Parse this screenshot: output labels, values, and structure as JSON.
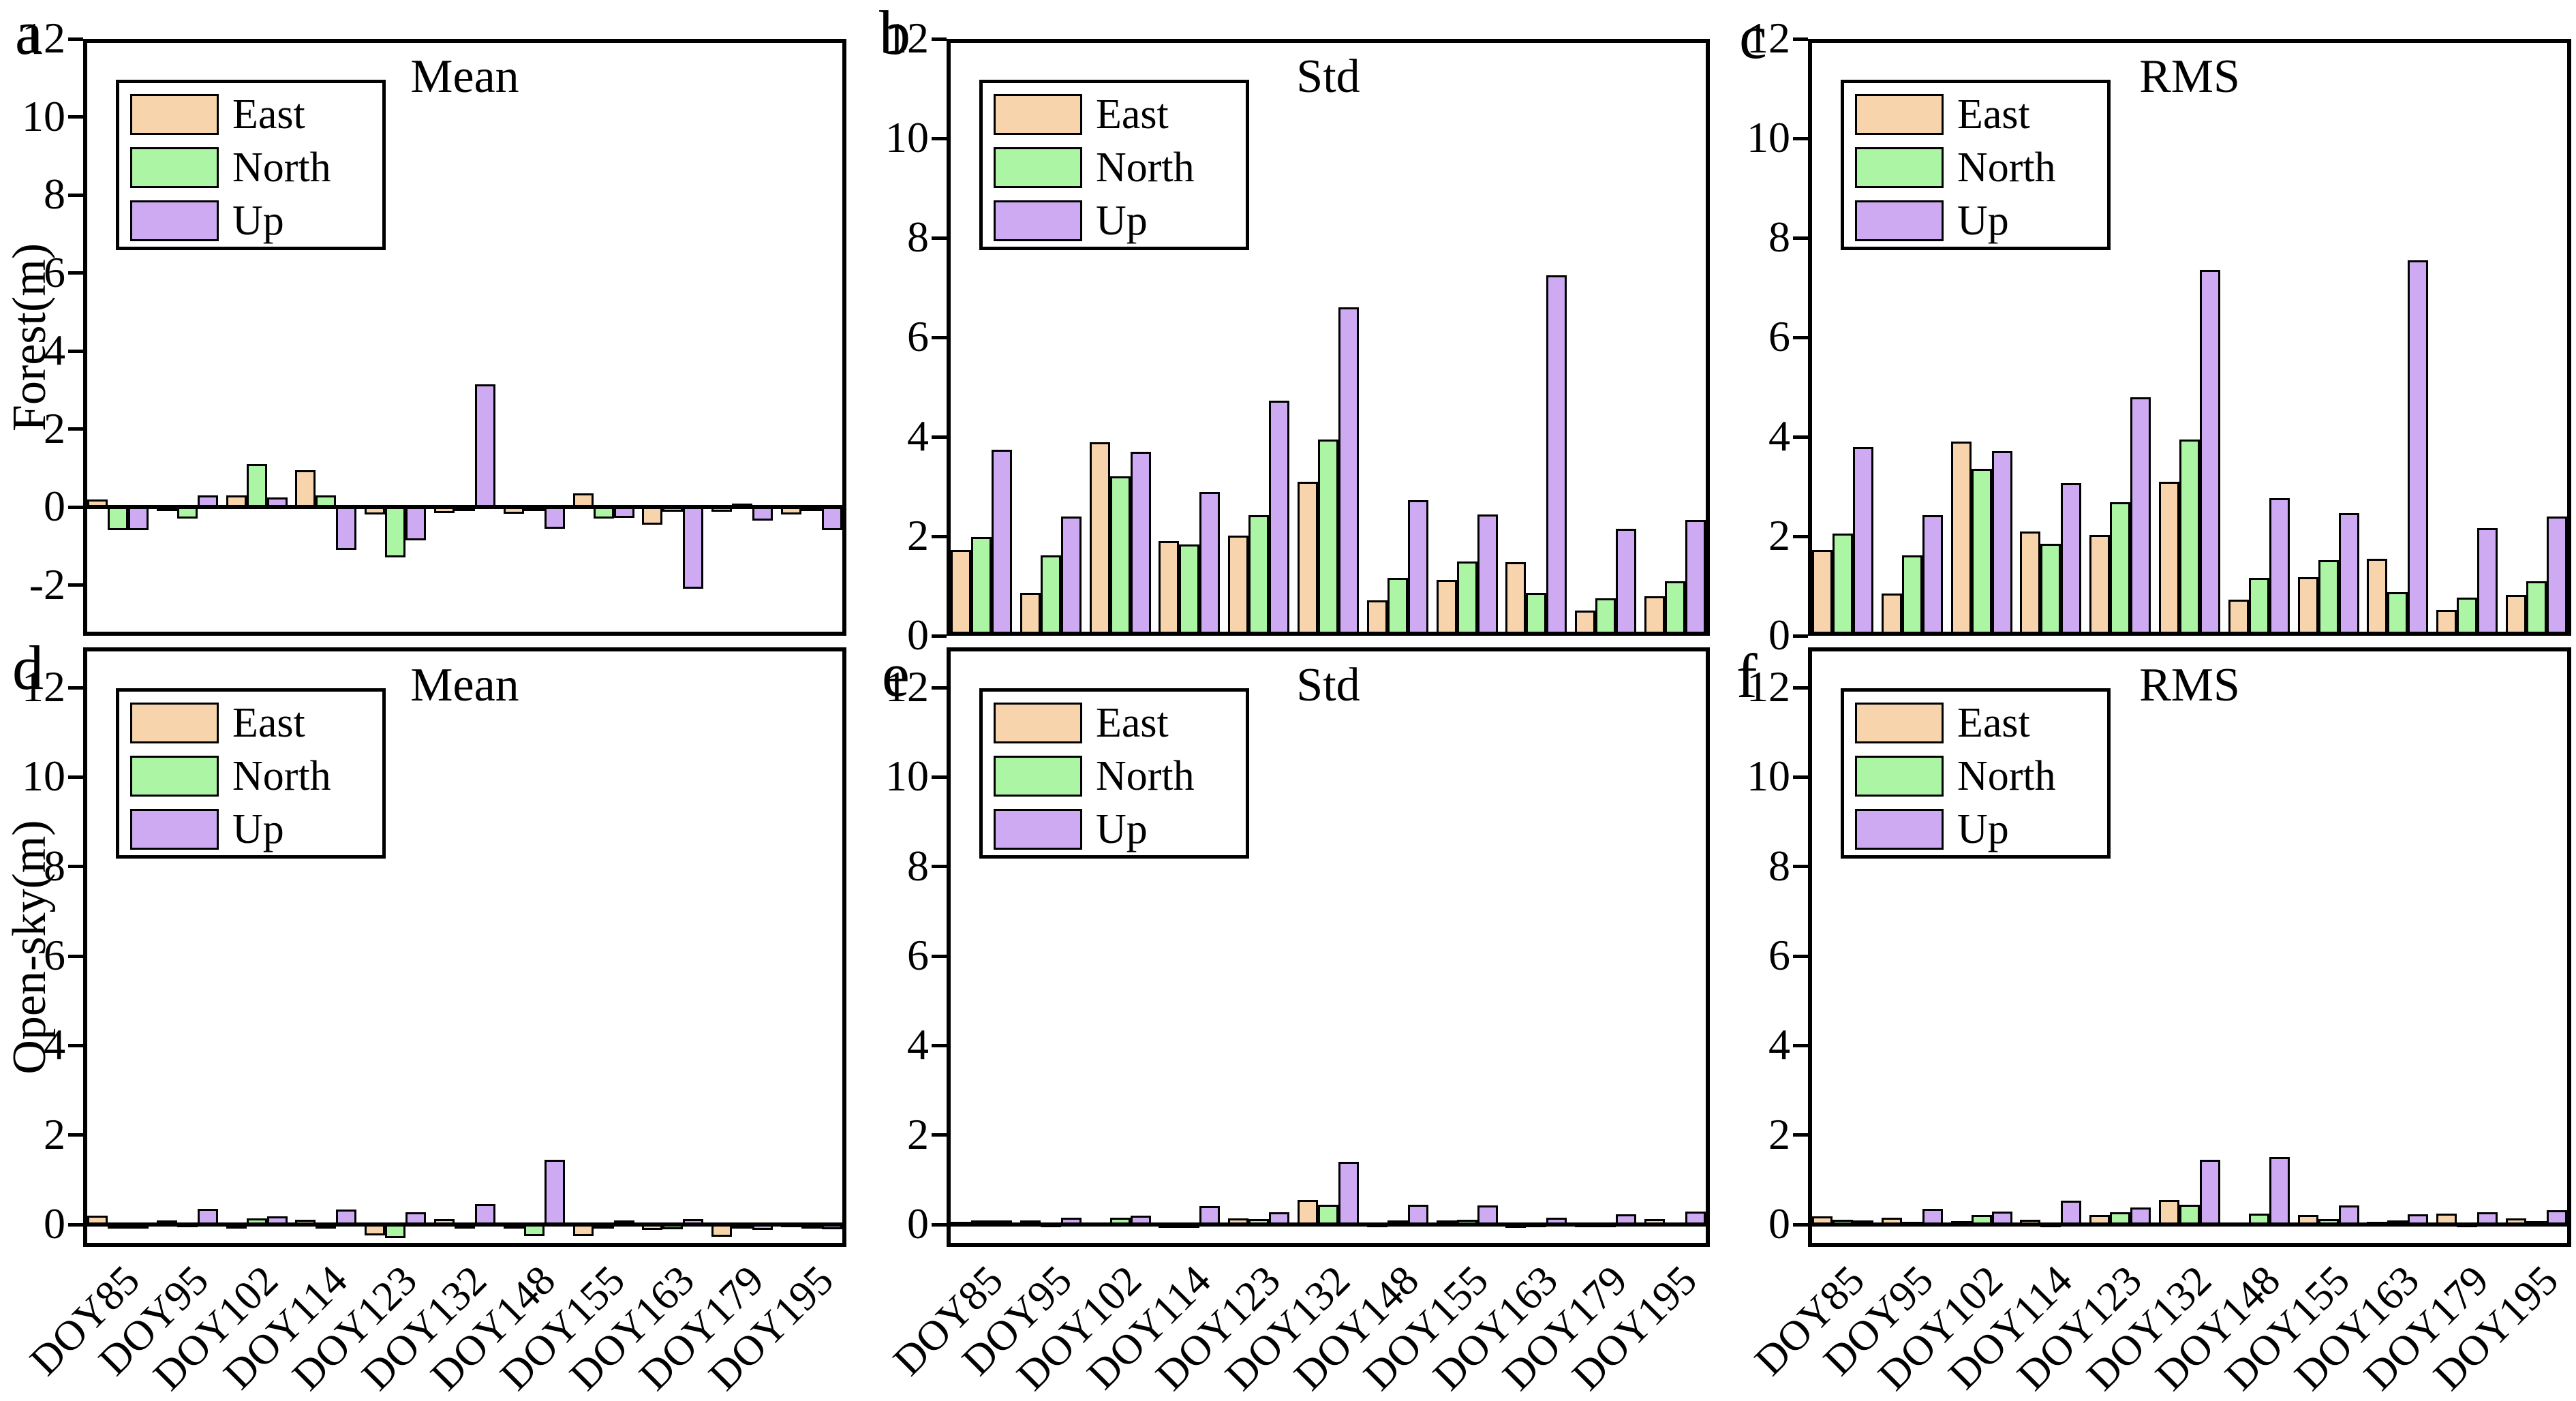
{
  "legend": {
    "entries": [
      {
        "label": "East",
        "color": "#F8D4AD"
      },
      {
        "label": "North",
        "color": "#ACF5A5"
      },
      {
        "label": "Up",
        "color": "#CDAAF2"
      }
    ]
  },
  "axis": {
    "row_labels": [
      "Forest(m)",
      "Open-sky(m)"
    ],
    "x_categories": [
      "DOY85",
      "DOY95",
      "DOY102",
      "DOY114",
      "DOY123",
      "DOY132",
      "DOY148",
      "DOY155",
      "DOY163",
      "DOY179",
      "DOY195"
    ]
  },
  "chart_data": [
    {
      "type": "bar",
      "panel_label": "a",
      "title": "Mean",
      "ylabel": "Forest(m)",
      "ylim": [
        -3.3,
        12
      ],
      "yticks": [
        -2,
        0,
        2,
        4,
        6,
        8,
        10,
        12
      ],
      "show_xticklabels": false,
      "categories": [
        "DOY85",
        "DOY95",
        "DOY102",
        "DOY114",
        "DOY123",
        "DOY132",
        "DOY148",
        "DOY155",
        "DOY163",
        "DOY179",
        "DOY195"
      ],
      "series": [
        {
          "name": "East",
          "values": [
            0.2,
            -0.1,
            0.3,
            0.95,
            -0.2,
            -0.15,
            -0.18,
            0.35,
            -0.45,
            -0.12,
            -0.2
          ]
        },
        {
          "name": "North",
          "values": [
            -0.6,
            -0.3,
            1.1,
            0.3,
            -1.3,
            -0.08,
            -0.05,
            -0.3,
            -0.12,
            0.08,
            -0.04
          ]
        },
        {
          "name": "Up",
          "values": [
            -0.6,
            0.3,
            0.25,
            -1.1,
            -0.85,
            3.15,
            -0.55,
            -0.28,
            -2.1,
            -0.35,
            -0.6
          ]
        }
      ]
    },
    {
      "type": "bar",
      "panel_label": "b",
      "title": "Std",
      "ylabel": "",
      "ylim": [
        0,
        12
      ],
      "yticks": [
        0,
        2,
        4,
        6,
        8,
        10,
        12
      ],
      "show_xticklabels": false,
      "categories": [
        "DOY85",
        "DOY95",
        "DOY102",
        "DOY114",
        "DOY123",
        "DOY132",
        "DOY148",
        "DOY155",
        "DOY163",
        "DOY179",
        "DOY195"
      ],
      "series": [
        {
          "name": "East",
          "values": [
            1.72,
            0.86,
            3.89,
            1.9,
            2.02,
            3.09,
            0.71,
            1.13,
            1.48,
            0.51,
            0.8
          ]
        },
        {
          "name": "North",
          "values": [
            1.98,
            1.62,
            3.2,
            1.83,
            2.43,
            3.95,
            1.17,
            1.5,
            0.86,
            0.76,
            1.09
          ]
        },
        {
          "name": "Up",
          "values": [
            3.74,
            2.4,
            3.7,
            2.89,
            4.72,
            6.6,
            2.72,
            2.44,
            7.25,
            2.15,
            2.33
          ]
        }
      ]
    },
    {
      "type": "bar",
      "panel_label": "c",
      "title": "RMS",
      "ylabel": "",
      "ylim": [
        0,
        12
      ],
      "yticks": [
        0,
        2,
        4,
        6,
        8,
        10,
        12
      ],
      "show_xticklabels": false,
      "categories": [
        "DOY85",
        "DOY95",
        "DOY102",
        "DOY114",
        "DOY123",
        "DOY132",
        "DOY148",
        "DOY155",
        "DOY163",
        "DOY179",
        "DOY195"
      ],
      "series": [
        {
          "name": "East",
          "values": [
            1.73,
            0.85,
            3.9,
            2.1,
            2.03,
            3.09,
            0.72,
            1.18,
            1.55,
            0.52,
            0.82
          ]
        },
        {
          "name": "North",
          "values": [
            2.05,
            1.62,
            3.35,
            1.85,
            2.68,
            3.95,
            1.17,
            1.52,
            0.87,
            0.77,
            1.09
          ]
        },
        {
          "name": "Up",
          "values": [
            3.79,
            2.42,
            3.71,
            3.07,
            4.79,
            7.35,
            2.77,
            2.46,
            7.55,
            2.17,
            2.4
          ]
        }
      ]
    },
    {
      "type": "bar",
      "panel_label": "d",
      "title": "Mean",
      "ylabel": "Open-sky(m)",
      "ylim": [
        -0.5,
        12.9
      ],
      "yticks": [
        0,
        2,
        4,
        6,
        8,
        10,
        12
      ],
      "show_xticklabels": true,
      "categories": [
        "DOY85",
        "DOY95",
        "DOY102",
        "DOY114",
        "DOY123",
        "DOY132",
        "DOY148",
        "DOY155",
        "DOY163",
        "DOY179",
        "DOY195"
      ],
      "series": [
        {
          "name": "East",
          "values": [
            0.2,
            0.1,
            -0.08,
            0.11,
            -0.24,
            0.12,
            -0.03,
            -0.25,
            -0.12,
            -0.27,
            0.04
          ]
        },
        {
          "name": "North",
          "values": [
            -0.04,
            0.04,
            0.14,
            -0.04,
            -0.3,
            -0.04,
            -0.25,
            -0.03,
            -0.1,
            -0.02,
            -0.06
          ]
        },
        {
          "name": "Up",
          "values": [
            -0.03,
            0.35,
            0.19,
            0.33,
            0.27,
            0.46,
            1.45,
            0.1,
            0.13,
            -0.12,
            -0.1
          ]
        }
      ]
    },
    {
      "type": "bar",
      "panel_label": "e",
      "title": "Std",
      "ylabel": "",
      "ylim": [
        -0.5,
        12.9
      ],
      "yticks": [
        0,
        2,
        4,
        6,
        8,
        10,
        12
      ],
      "show_xticklabels": true,
      "categories": [
        "DOY85",
        "DOY95",
        "DOY102",
        "DOY114",
        "DOY123",
        "DOY132",
        "DOY148",
        "DOY155",
        "DOY163",
        "DOY179",
        "DOY195"
      ],
      "series": [
        {
          "name": "East",
          "values": [
            0.06,
            0.1,
            0.05,
            0.02,
            0.14,
            0.55,
            0.04,
            0.09,
            0.02,
            0.03,
            0.13
          ]
        },
        {
          "name": "North",
          "values": [
            0.1,
            0.04,
            0.15,
            0.02,
            0.13,
            0.44,
            0.09,
            0.11,
            0.03,
            0.03,
            0.05
          ]
        },
        {
          "name": "Up",
          "values": [
            0.09,
            0.15,
            0.2,
            0.42,
            0.28,
            1.4,
            0.44,
            0.43,
            0.16,
            0.23,
            0.29
          ]
        }
      ]
    },
    {
      "type": "bar",
      "panel_label": "f",
      "title": "RMS",
      "ylabel": "",
      "ylim": [
        -0.5,
        12.9
      ],
      "yticks": [
        0,
        2,
        4,
        6,
        8,
        10,
        12
      ],
      "show_xticklabels": true,
      "categories": [
        "DOY85",
        "DOY95",
        "DOY102",
        "DOY114",
        "DOY123",
        "DOY132",
        "DOY148",
        "DOY155",
        "DOY163",
        "DOY179",
        "DOY195"
      ],
      "series": [
        {
          "name": "East",
          "values": [
            0.19,
            0.15,
            0.08,
            0.11,
            0.22,
            0.55,
            0.05,
            0.22,
            0.07,
            0.24,
            0.14
          ]
        },
        {
          "name": "North",
          "values": [
            0.11,
            0.06,
            0.21,
            0.04,
            0.27,
            0.45,
            0.24,
            0.13,
            0.09,
            0.03,
            0.08
          ]
        },
        {
          "name": "Up",
          "values": [
            0.09,
            0.35,
            0.29,
            0.54,
            0.39,
            1.45,
            1.51,
            0.43,
            0.23,
            0.28,
            0.32
          ]
        }
      ]
    }
  ]
}
